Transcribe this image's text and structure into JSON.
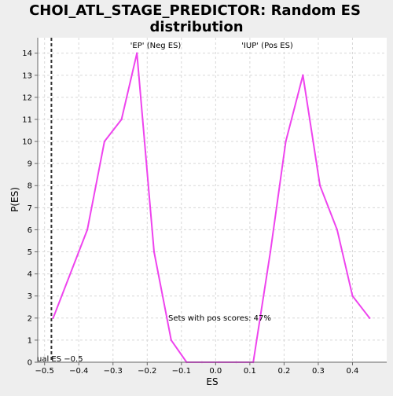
{
  "chart_data": {
    "type": "line",
    "title_lines": [
      "CHOI_ATL_STAGE_PREDICTOR: Random ES",
      "distribution"
    ],
    "xlabel": "ES",
    "ylabel": "P(ES)",
    "xlim": [
      -0.52,
      0.5
    ],
    "ylim": [
      0,
      14.7
    ],
    "x_ticks": [
      -0.5,
      -0.4,
      -0.3,
      -0.2,
      -0.1,
      0.0,
      0.1,
      0.2,
      0.3,
      0.4
    ],
    "x_tick_labels": [
      "−0.5",
      "−0.4",
      "−0.3",
      "−0.2",
      "−0.1",
      "0.0",
      "0.1",
      "0.2",
      "0.3",
      "0.4"
    ],
    "y_ticks": [
      0,
      1,
      2,
      3,
      4,
      5,
      6,
      7,
      8,
      9,
      10,
      11,
      12,
      13,
      14
    ],
    "y_tick_labels": [
      "0",
      "1",
      "2",
      "3",
      "4",
      "5",
      "6",
      "7",
      "8",
      "9",
      "10",
      "11",
      "12",
      "13",
      "14"
    ],
    "grid": true,
    "series": [
      {
        "color": "#ee44ee",
        "x": [
          -0.475,
          -0.375,
          -0.325,
          -0.275,
          -0.23,
          -0.18,
          -0.13,
          -0.085,
          -0.04,
          0.01,
          0.06,
          0.11,
          0.16,
          0.205,
          0.255,
          0.305,
          0.355,
          0.4,
          0.45
        ],
        "y": [
          2,
          6,
          10,
          11,
          14,
          5,
          1,
          0,
          0,
          0,
          0,
          0,
          5,
          10,
          13,
          8,
          6,
          3,
          2
        ]
      }
    ],
    "reference_line": {
      "x": -0.48,
      "color": "#333333"
    },
    "annotations": {
      "neg_label": "'EP' (Neg ES)",
      "neg_color": "#3333cc",
      "pos_label": "'IUP' (Pos ES)",
      "pos_color": "#dd3333",
      "sets_text": "Sets with pos scores: 47%",
      "actual_es_text": "ual ES −0.5"
    }
  }
}
